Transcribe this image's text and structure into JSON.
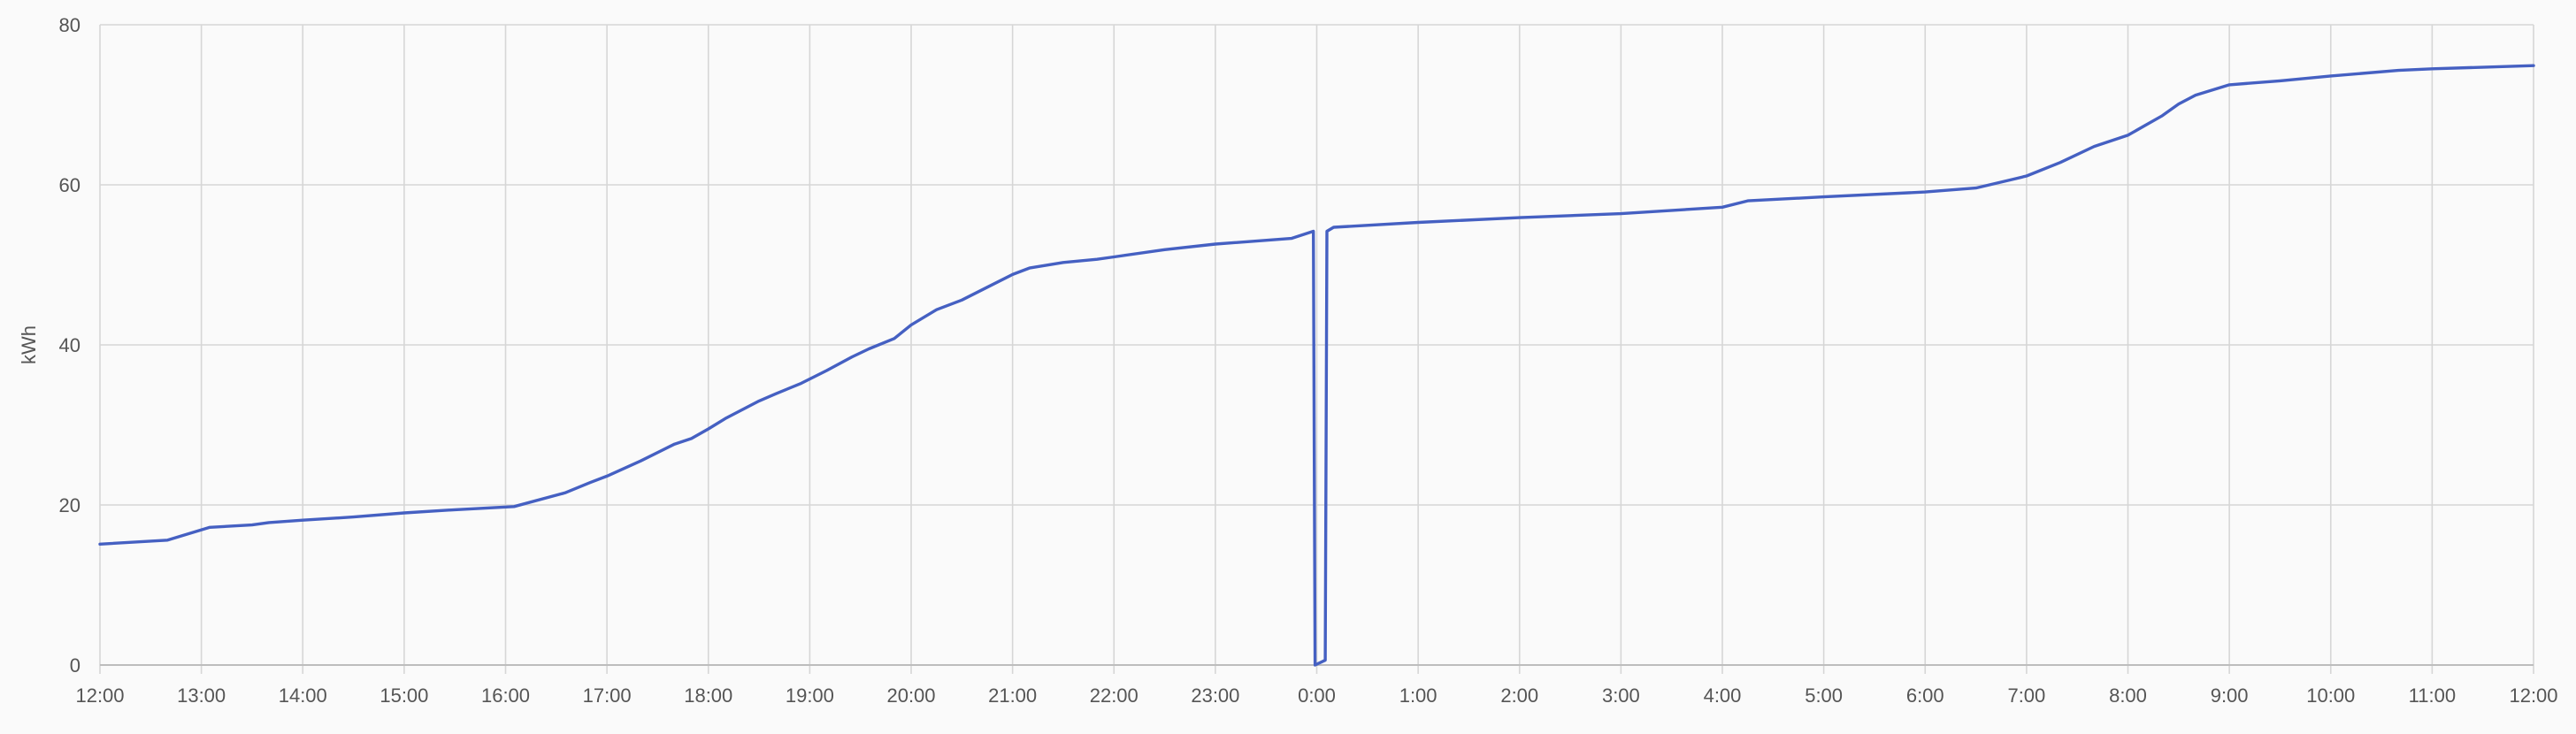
{
  "chart_data": {
    "type": "line",
    "title": "",
    "xlabel": "",
    "ylabel": "kWh",
    "ylim": [
      0,
      80
    ],
    "xlim_hours": [
      0,
      24
    ],
    "grid": true,
    "legend": "none",
    "y_ticks": [
      "0",
      "20",
      "40",
      "60",
      "80"
    ],
    "x_ticks": [
      "12:00",
      "13:00",
      "14:00",
      "15:00",
      "16:00",
      "17:00",
      "18:00",
      "19:00",
      "20:00",
      "21:00",
      "22:00",
      "23:00",
      "0:00",
      "1:00",
      "2:00",
      "3:00",
      "4:00",
      "5:00",
      "6:00",
      "7:00",
      "8:00",
      "9:00",
      "10:00",
      "11:00",
      "12:00"
    ],
    "series": [
      {
        "name": "",
        "color": "#4560c2",
        "x": [
          "12:00",
          "12:40",
          "13:05",
          "13:30",
          "13:40",
          "14:00",
          "14:30",
          "15:00",
          "15:30",
          "16:05",
          "16:35",
          "16:50",
          "17:00",
          "17:20",
          "17:40",
          "17:50",
          "18:00",
          "18:10",
          "18:30",
          "18:40",
          "18:55",
          "19:10",
          "19:25",
          "19:35",
          "19:50",
          "20:00",
          "20:15",
          "20:30",
          "20:45",
          "21:00",
          "21:10",
          "21:30",
          "21:50",
          "22:00",
          "22:30",
          "23:00",
          "23:45",
          "23:58",
          "23:59",
          "0:05",
          "0:06",
          "0:10",
          "1:00",
          "2:00",
          "3:00",
          "4:00",
          "4:15",
          "5:00",
          "6:00",
          "6:30",
          "6:50",
          "7:00",
          "7:20",
          "7:40",
          "8:00",
          "8:10",
          "8:20",
          "8:30",
          "8:40",
          "9:00",
          "9:30",
          "10:00",
          "10:40",
          "11:00",
          "12:00"
        ],
        "y": [
          15.1,
          15.6,
          17.2,
          17.5,
          17.8,
          18.1,
          18.5,
          19.0,
          19.4,
          19.8,
          21.5,
          22.8,
          23.6,
          25.5,
          27.6,
          28.3,
          29.5,
          30.8,
          33.0,
          33.9,
          35.2,
          36.8,
          38.5,
          39.5,
          40.8,
          42.5,
          44.4,
          45.6,
          47.2,
          48.8,
          49.6,
          50.3,
          50.7,
          51.0,
          51.9,
          52.6,
          53.3,
          54.2,
          0,
          0.6,
          54.2,
          54.7,
          55.3,
          55.9,
          56.4,
          57.2,
          58.0,
          58.5,
          59.1,
          59.6,
          60.6,
          61.1,
          62.8,
          64.8,
          66.2,
          67.4,
          68.6,
          70.1,
          71.2,
          72.5,
          73.0,
          73.6,
          74.3,
          74.5,
          74.9
        ]
      }
    ]
  }
}
